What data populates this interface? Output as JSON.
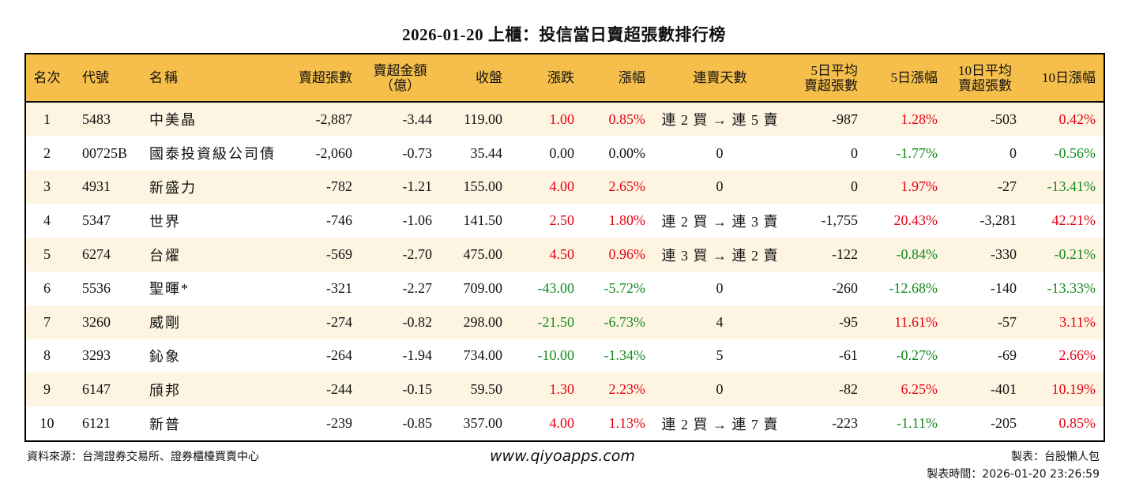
{
  "title": "2026-01-20 上櫃：投信當日賣超張數排行榜",
  "headers": [
    "名次",
    "代號",
    "名稱",
    "賣超張數",
    "賣超金額\n（億）",
    "收盤",
    "漲跌",
    "漲幅",
    "連賣天數",
    "5日平均\n賣超張數",
    "5日漲幅",
    "10日平均\n賣超張數",
    "10日漲幅"
  ],
  "rows": [
    [
      "1",
      "5483",
      "中美晶",
      "-2,887",
      "-3.44",
      "119.00",
      "1.00",
      "0.85%",
      "連 2 買 → 連 5 賣",
      "-987",
      "1.28%",
      "-503",
      "0.42%"
    ],
    [
      "2",
      "00725B",
      "國泰投資級公司債",
      "-2,060",
      "-0.73",
      "35.44",
      "0.00",
      "0.00%",
      "0",
      "0",
      "-1.77%",
      "0",
      "-0.56%"
    ],
    [
      "3",
      "4931",
      "新盛力",
      "-782",
      "-1.21",
      "155.00",
      "4.00",
      "2.65%",
      "0",
      "0",
      "1.97%",
      "-27",
      "-13.41%"
    ],
    [
      "4",
      "5347",
      "世界",
      "-746",
      "-1.06",
      "141.50",
      "2.50",
      "1.80%",
      "連 2 買 → 連 3 賣",
      "-1,755",
      "20.43%",
      "-3,281",
      "42.21%"
    ],
    [
      "5",
      "6274",
      "台燿",
      "-569",
      "-2.70",
      "475.00",
      "4.50",
      "0.96%",
      "連 3 買 → 連 2 賣",
      "-122",
      "-0.84%",
      "-330",
      "-0.21%"
    ],
    [
      "6",
      "5536",
      "聖暉*",
      "-321",
      "-2.27",
      "709.00",
      "-43.00",
      "-5.72%",
      "0",
      "-260",
      "-12.68%",
      "-140",
      "-13.33%"
    ],
    [
      "7",
      "3260",
      "威剛",
      "-274",
      "-0.82",
      "298.00",
      "-21.50",
      "-6.73%",
      "4",
      "-95",
      "11.61%",
      "-57",
      "3.11%"
    ],
    [
      "8",
      "3293",
      "鈊象",
      "-264",
      "-1.94",
      "734.00",
      "-10.00",
      "-1.34%",
      "5",
      "-61",
      "-0.27%",
      "-69",
      "2.66%"
    ],
    [
      "9",
      "6147",
      "頎邦",
      "-244",
      "-0.15",
      "59.50",
      "1.30",
      "2.23%",
      "0",
      "-82",
      "6.25%",
      "-401",
      "10.19%"
    ],
    [
      "10",
      "6121",
      "新普",
      "-239",
      "-0.85",
      "357.00",
      "4.00",
      "1.13%",
      "連 2 買 → 連 7 賣",
      "-223",
      "-1.11%",
      "-205",
      "0.85%"
    ]
  ],
  "footer": {
    "source": "資料來源：台灣證券交易所、證券櫃檯買賣中心",
    "site": "www.qiyoapps.com",
    "maker": "製表：台股懶人包",
    "time": "製表時間：2026-01-20 23:26:59"
  },
  "colors": {
    "header_bg": "#F6BF4B",
    "row_alt_bg": "#FDF5E2",
    "up": "#E60012",
    "down": "#138A1E"
  }
}
